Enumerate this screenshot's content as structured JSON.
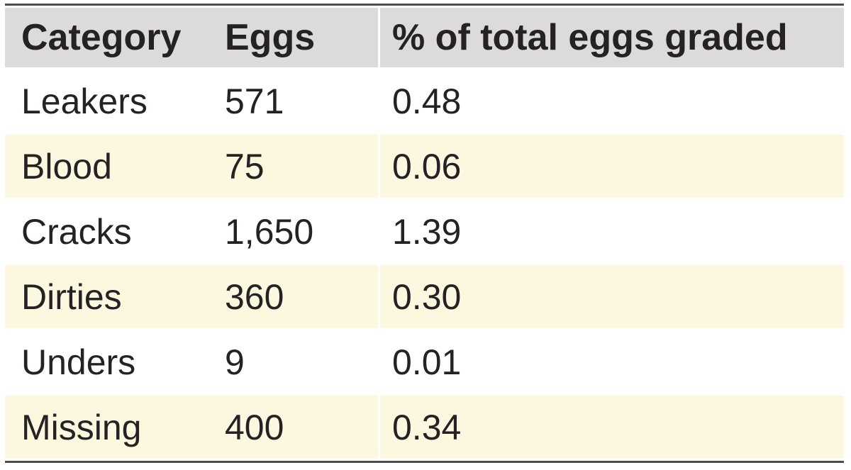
{
  "table": {
    "columns": [
      {
        "key": "category",
        "label": "Category"
      },
      {
        "key": "eggs",
        "label": "Eggs"
      },
      {
        "key": "pct",
        "label": "% of total eggs graded"
      }
    ],
    "rows": [
      {
        "category": "Leakers",
        "eggs": "571",
        "pct": "0.48"
      },
      {
        "category": "Blood",
        "eggs": "75",
        "pct": "0.06"
      },
      {
        "category": "Cracks",
        "eggs": "1,650",
        "pct": "1.39"
      },
      {
        "category": "Dirties",
        "eggs": "360",
        "pct": "0.30"
      },
      {
        "category": "Unders",
        "eggs": "9",
        "pct": "0.01"
      },
      {
        "category": "Missing",
        "eggs": "400",
        "pct": "0.34"
      }
    ]
  },
  "chart_data": {
    "type": "table",
    "title": "",
    "columns": [
      "Category",
      "Eggs",
      "% of total eggs graded"
    ],
    "categories": [
      "Leakers",
      "Blood",
      "Cracks",
      "Dirties",
      "Unders",
      "Missing"
    ],
    "series": [
      {
        "name": "Eggs",
        "values": [
          571,
          75,
          1650,
          360,
          9,
          400
        ]
      },
      {
        "name": "% of total eggs graded",
        "values": [
          0.48,
          0.06,
          1.39,
          0.3,
          0.01,
          0.34
        ]
      }
    ],
    "layout_hints": {
      "header_background": "#dcdada",
      "zebra_striping": "white / pale-yellow alternating starting white",
      "rules": "dark horizontal rule above header and below last row"
    }
  },
  "colors": {
    "header_bg": "#dcdada",
    "row_bg": "#ffffff",
    "row_alt_bg": "#fcf7df",
    "text": "#262223",
    "border": "#4f4c4d",
    "column_separator": "#ffffff"
  }
}
